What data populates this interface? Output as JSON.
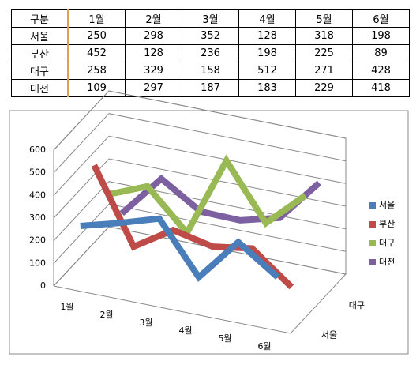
{
  "table": {
    "header": "구분"
  },
  "chart_data": {
    "type": "line",
    "categories": [
      "1월",
      "2월",
      "3월",
      "4월",
      "5월",
      "6월"
    ],
    "series": [
      {
        "name": "서울",
        "color": "#4a7ebb",
        "values": [
          250,
          298,
          352,
          128,
          318,
          198
        ]
      },
      {
        "name": "부산",
        "color": "#be4b48",
        "values": [
          452,
          128,
          236,
          198,
          225,
          89
        ]
      },
      {
        "name": "대구",
        "color": "#98b954",
        "values": [
          258,
          329,
          158,
          512,
          271,
          428
        ]
      },
      {
        "name": "대전",
        "color": "#7d60a0",
        "values": [
          109,
          297,
          187,
          183,
          229,
          418
        ]
      }
    ],
    "depth_categories": [
      "서울",
      null,
      "대구",
      null
    ],
    "ylim": [
      0,
      600
    ],
    "yticks": [
      0,
      100,
      200,
      300,
      400,
      500,
      600
    ],
    "grid": true,
    "legend": "right"
  }
}
